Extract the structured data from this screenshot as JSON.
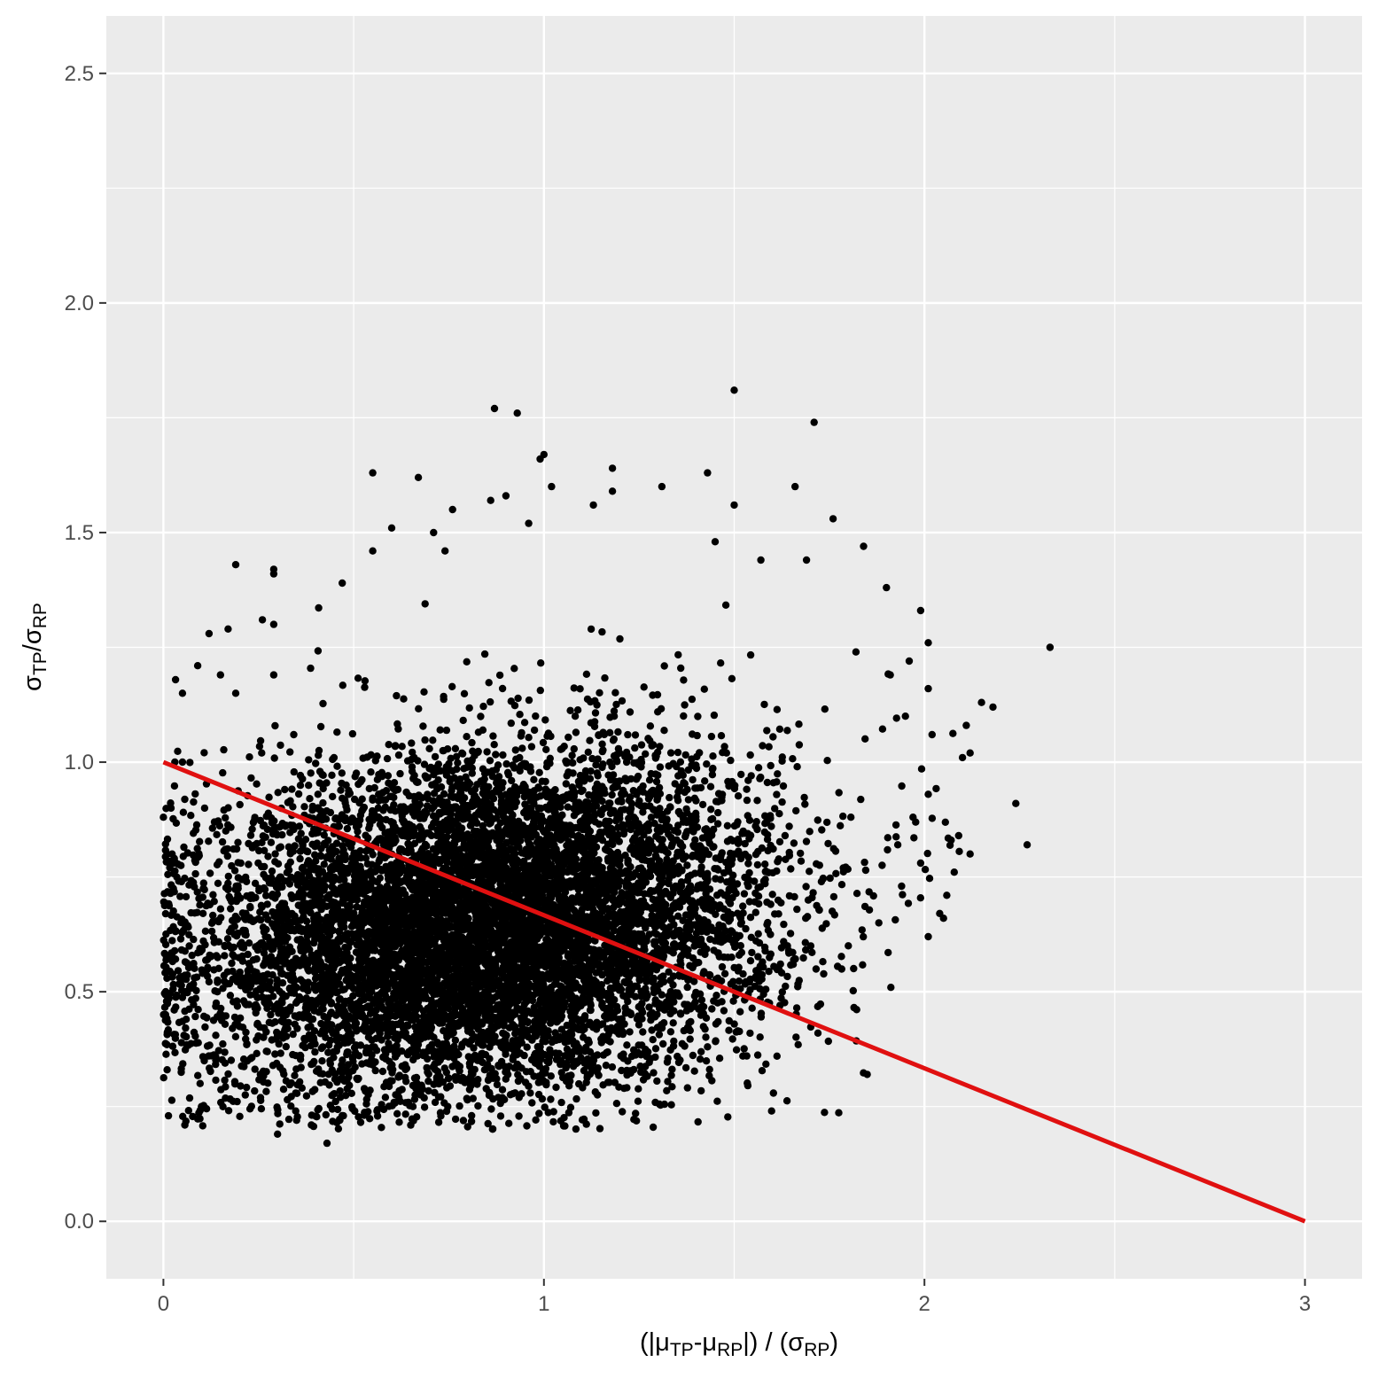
{
  "chart_data": {
    "type": "scatter",
    "title": "",
    "xlabel": {
      "pre": "(|μ",
      "sub1": "TP",
      "mid": "-μ",
      "sub2": "RP",
      "post": "|) / (σ",
      "sub3": "RP",
      "end": ")"
    },
    "ylabel": {
      "pre": "σ",
      "sub1": "TP",
      "mid": "/σ",
      "sub2": "RP"
    },
    "xlim": [
      -0.15,
      3.15
    ],
    "ylim": [
      -0.125,
      2.625
    ],
    "x_ticks": [
      0,
      1,
      2,
      3
    ],
    "x_tick_labels": [
      "0",
      "1",
      "2",
      "3"
    ],
    "y_ticks": [
      0.0,
      0.5,
      1.0,
      1.5,
      2.0,
      2.5
    ],
    "y_tick_labels": [
      "0.0",
      "0.5",
      "1.0",
      "1.5",
      "2.0",
      "2.5"
    ],
    "grid": true,
    "point_color": "#000000",
    "line_color": "#e01010",
    "panel_color": "#ebebeb",
    "grid_color": "#ffffff",
    "reference_line": {
      "x": [
        0,
        3
      ],
      "y": [
        1.0,
        0.0
      ]
    },
    "cluster": {
      "center_x": 0.85,
      "center_y": 0.64,
      "sd_x": 0.38,
      "sd_y": 0.19,
      "n": 9000
    },
    "outliers": [
      [
        1.5,
        1.81
      ],
      [
        0.87,
        1.77
      ],
      [
        0.93,
        1.76
      ],
      [
        1.71,
        1.74
      ],
      [
        1.0,
        1.67
      ],
      [
        0.99,
        1.66
      ],
      [
        0.55,
        1.63
      ],
      [
        0.67,
        1.62
      ],
      [
        1.18,
        1.64
      ],
      [
        1.43,
        1.63
      ],
      [
        1.66,
        1.6
      ],
      [
        1.31,
        1.6
      ],
      [
        1.02,
        1.6
      ],
      [
        1.18,
        1.59
      ],
      [
        0.9,
        1.58
      ],
      [
        0.86,
        1.57
      ],
      [
        1.5,
        1.56
      ],
      [
        1.13,
        1.56
      ],
      [
        0.76,
        1.55
      ],
      [
        1.76,
        1.53
      ],
      [
        0.96,
        1.52
      ],
      [
        0.6,
        1.51
      ],
      [
        0.71,
        1.5
      ],
      [
        1.45,
        1.48
      ],
      [
        1.84,
        1.47
      ],
      [
        0.74,
        1.46
      ],
      [
        0.55,
        1.46
      ],
      [
        1.57,
        1.44
      ],
      [
        1.69,
        1.44
      ],
      [
        0.19,
        1.43
      ],
      [
        0.29,
        1.42
      ],
      [
        0.29,
        1.41
      ],
      [
        1.9,
        1.38
      ],
      [
        0.47,
        1.39
      ],
      [
        1.99,
        1.33
      ],
      [
        0.26,
        1.31
      ],
      [
        0.29,
        1.3
      ],
      [
        2.33,
        1.25
      ],
      [
        0.17,
        1.29
      ],
      [
        0.12,
        1.28
      ],
      [
        2.01,
        1.26
      ],
      [
        1.82,
        1.24
      ],
      [
        0.09,
        1.21
      ],
      [
        1.96,
        1.22
      ],
      [
        1.91,
        1.19
      ],
      [
        0.15,
        1.19
      ],
      [
        0.29,
        1.19
      ],
      [
        2.01,
        1.16
      ],
      [
        0.05,
        1.15
      ],
      [
        0.19,
        1.15
      ],
      [
        2.15,
        1.13
      ],
      [
        2.18,
        1.12
      ],
      [
        1.95,
        1.1
      ],
      [
        2.11,
        1.08
      ],
      [
        2.02,
        1.06
      ],
      [
        2.12,
        1.02
      ],
      [
        2.1,
        1.01
      ],
      [
        2.01,
        0.93
      ],
      [
        2.24,
        0.91
      ],
      [
        1.97,
        0.88
      ],
      [
        2.07,
        0.83
      ],
      [
        2.09,
        0.84
      ],
      [
        2.27,
        0.82
      ],
      [
        1.93,
        0.82
      ],
      [
        2.12,
        0.8
      ],
      [
        1.99,
        0.78
      ],
      [
        1.94,
        0.73
      ],
      [
        2.05,
        0.66
      ],
      [
        2.01,
        0.62
      ],
      [
        1.72,
        0.41
      ],
      [
        1.8,
        0.6
      ],
      [
        1.88,
        0.65
      ],
      [
        0.3,
        0.19
      ],
      [
        0.43,
        0.17
      ],
      [
        0.35,
        0.22
      ],
      [
        0.81,
        0.23
      ],
      [
        0.1,
        0.25
      ],
      [
        0.47,
        0.23
      ],
      [
        0.02,
        0.9
      ],
      [
        0.0,
        0.88
      ],
      [
        0.01,
        0.8
      ],
      [
        0.03,
        1.0
      ],
      [
        0.05,
        1.0
      ],
      [
        1.43,
        0.38
      ]
    ]
  }
}
